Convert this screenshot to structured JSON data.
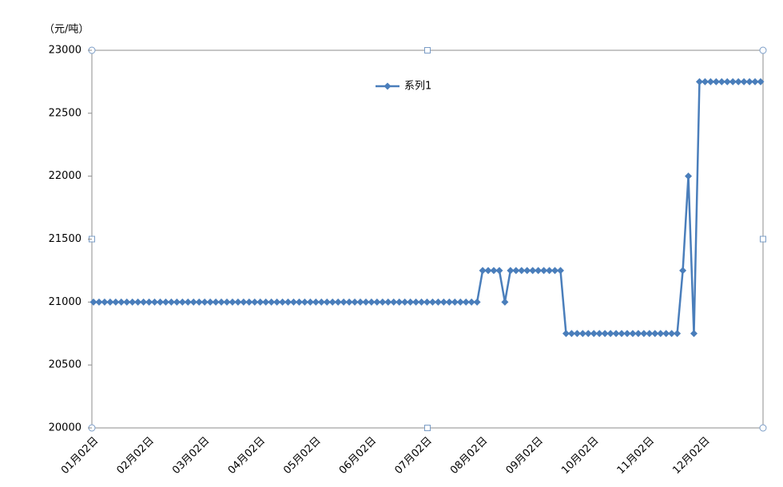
{
  "chart_data": {
    "type": "line",
    "y_unit": "（元/吨）",
    "legend": "top",
    "categories": [
      "01月02日",
      null,
      null,
      null,
      null,
      null,
      null,
      null,
      null,
      null,
      "02月02日",
      null,
      null,
      null,
      null,
      null,
      null,
      null,
      null,
      null,
      "03月02日",
      null,
      null,
      null,
      null,
      null,
      null,
      null,
      null,
      null,
      "04月02日",
      null,
      null,
      null,
      null,
      null,
      null,
      null,
      null,
      null,
      "05月02日",
      null,
      null,
      null,
      null,
      null,
      null,
      null,
      null,
      null,
      "06月02日",
      null,
      null,
      null,
      null,
      null,
      null,
      null,
      null,
      null,
      "07月02日",
      null,
      null,
      null,
      null,
      null,
      null,
      null,
      null,
      null,
      "08月02日",
      null,
      null,
      null,
      null,
      null,
      null,
      null,
      null,
      null,
      "09月02日",
      null,
      null,
      null,
      null,
      null,
      null,
      null,
      null,
      null,
      "10月02日",
      null,
      null,
      null,
      null,
      null,
      null,
      null,
      null,
      null,
      "11月02日",
      null,
      null,
      null,
      null,
      null,
      null,
      null,
      null,
      null,
      "12月02日",
      null,
      null,
      null,
      null,
      null,
      null,
      null,
      null,
      null,
      null
    ],
    "series": [
      {
        "name": "系列1",
        "color": "#4a7ebb",
        "values": [
          21000,
          21000,
          21000,
          21000,
          21000,
          21000,
          21000,
          21000,
          21000,
          21000,
          21000,
          21000,
          21000,
          21000,
          21000,
          21000,
          21000,
          21000,
          21000,
          21000,
          21000,
          21000,
          21000,
          21000,
          21000,
          21000,
          21000,
          21000,
          21000,
          21000,
          21000,
          21000,
          21000,
          21000,
          21000,
          21000,
          21000,
          21000,
          21000,
          21000,
          21000,
          21000,
          21000,
          21000,
          21000,
          21000,
          21000,
          21000,
          21000,
          21000,
          21000,
          21000,
          21000,
          21000,
          21000,
          21000,
          21000,
          21000,
          21000,
          21000,
          21000,
          21000,
          21000,
          21000,
          21000,
          21000,
          21000,
          21000,
          21000,
          21000,
          21250,
          21250,
          21250,
          21250,
          21000,
          21250,
          21250,
          21250,
          21250,
          21250,
          21250,
          21250,
          21250,
          21250,
          21250,
          20750,
          20750,
          20750,
          20750,
          20750,
          20750,
          20750,
          20750,
          20750,
          20750,
          20750,
          20750,
          20750,
          20750,
          20750,
          20750,
          20750,
          20750,
          20750,
          20750,
          20750,
          21250,
          22000,
          20750,
          22750,
          22750,
          22750,
          22750,
          22750,
          22750,
          22750,
          22750,
          22750,
          22750,
          22750,
          22750
        ]
      }
    ],
    "ylim": [
      20000,
      23000
    ],
    "yticks": [
      20000,
      20500,
      21000,
      21500,
      22000,
      22500,
      23000
    ],
    "grid": false
  }
}
